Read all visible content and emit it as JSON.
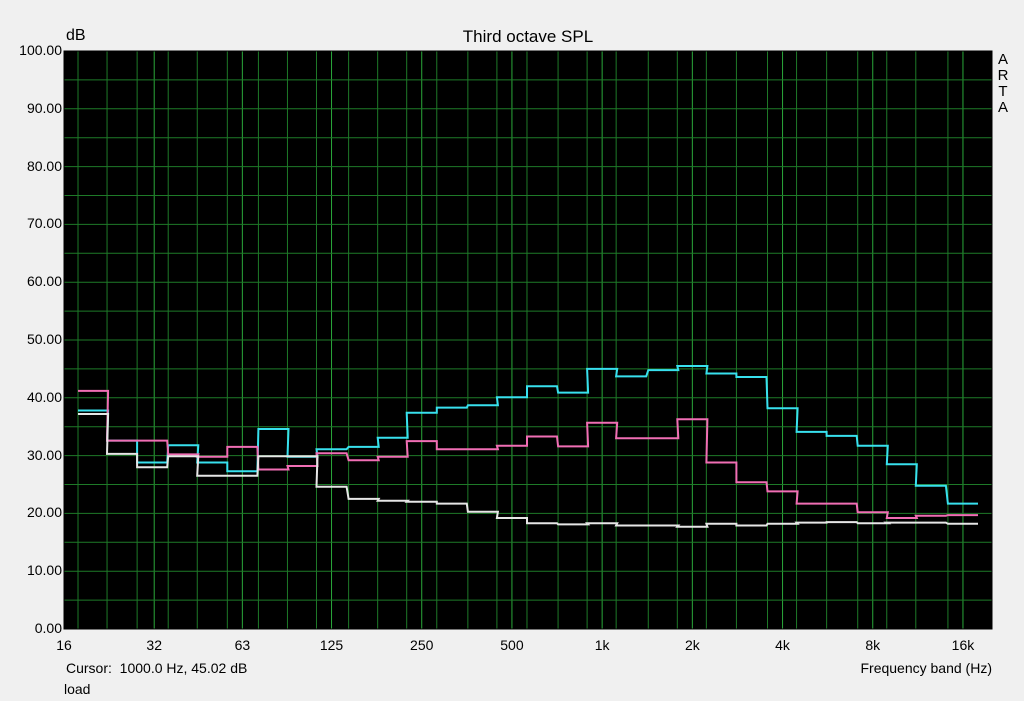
{
  "window": {
    "ylabel": "dB",
    "title": "Third octave SPL",
    "watermark": [
      "A",
      "R",
      "T",
      "A"
    ],
    "cursor_text": "Cursor:  1000.0 Hz, 45.02 dB",
    "xlabel": "Frequency band (Hz)",
    "status": "load"
  },
  "colors": {
    "background": "#f0f0f0",
    "plot_bg": "#000000",
    "grid": "#1e7a28",
    "cyan": "#38e0ee",
    "pink": "#f06eb4",
    "grey": "#e6e6e6"
  },
  "chart_data": {
    "type": "line",
    "title": "Third octave SPL",
    "xlabel": "Frequency band (Hz)",
    "ylabel": "dB",
    "x_scale": "log",
    "xlim": [
      16,
      20000
    ],
    "ylim": [
      0,
      100
    ],
    "grid": true,
    "x_ticks": [
      16,
      32,
      63,
      125,
      250,
      500,
      1000,
      2000,
      4000,
      8000,
      16000
    ],
    "x_tick_labels": [
      "16",
      "32",
      "63",
      "125",
      "250",
      "500",
      "1k",
      "2k",
      "4k",
      "8k",
      "16k"
    ],
    "y_ticks": [
      0,
      10,
      20,
      30,
      40,
      50,
      60,
      70,
      80,
      90,
      100
    ],
    "y_tick_labels": [
      "0.00",
      "10.00",
      "20.00",
      "30.00",
      "40.00",
      "50.00",
      "60.00",
      "70.00",
      "80.00",
      "90.00",
      "100.00"
    ],
    "bands": [
      20,
      25,
      31.5,
      40,
      50,
      63,
      80,
      100,
      125,
      160,
      200,
      250,
      315,
      400,
      500,
      630,
      800,
      1000,
      1250,
      1600,
      2000,
      2500,
      3150,
      4000,
      5000,
      6300,
      8000,
      10000,
      12500,
      16000
    ],
    "series": [
      {
        "color": "#38e0ee",
        "values": [
          37.8,
          32.6,
          28.8,
          31.8,
          28.8,
          27.3,
          34.6,
          29.8,
          31.1,
          31.5,
          33.1,
          37.4,
          38.3,
          38.7,
          40.1,
          42.0,
          40.9,
          45.0,
          43.7,
          44.8,
          45.5,
          44.2,
          43.6,
          38.2,
          34.1,
          33.4,
          31.7,
          28.5,
          24.8,
          21.7
        ]
      },
      {
        "color": "#f06eb4",
        "values": [
          41.2,
          32.6,
          32.6,
          30.2,
          29.8,
          31.5,
          27.6,
          28.2,
          30.4,
          29.2,
          29.8,
          32.5,
          31.1,
          31.1,
          31.7,
          33.3,
          31.6,
          35.7,
          33.0,
          33.0,
          36.3,
          28.8,
          25.4,
          23.8,
          21.7,
          21.7,
          20.2,
          19.2,
          19.6,
          19.7
        ]
      },
      {
        "color": "#e6e6e6",
        "values": [
          37.2,
          30.3,
          28.0,
          29.9,
          26.5,
          26.5,
          29.9,
          29.9,
          24.6,
          22.5,
          22.2,
          22.0,
          21.7,
          20.3,
          19.2,
          18.3,
          18.1,
          18.3,
          17.9,
          17.9,
          17.7,
          18.2,
          17.9,
          18.2,
          18.4,
          18.5,
          18.3,
          18.4,
          18.4,
          18.2
        ]
      }
    ]
  }
}
